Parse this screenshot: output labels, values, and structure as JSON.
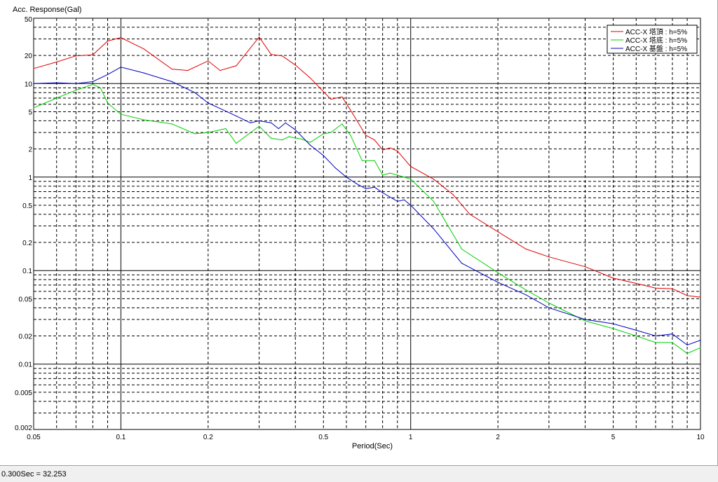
{
  "status_bar": {
    "text": "0.300Sec = 32.253"
  },
  "chart_data": {
    "type": "line",
    "title": "",
    "xlabel": "Period(Sec)",
    "ylabel": "Acc. Response(Gal)",
    "x_scale": "log",
    "y_scale": "log",
    "xlim": [
      0.05,
      10
    ],
    "ylim": [
      0.002,
      50
    ],
    "grid": true,
    "legend_position": "top-right",
    "x_ticks": [
      0.05,
      0.1,
      0.2,
      0.5,
      1,
      2,
      5,
      10
    ],
    "x_tick_labels": [
      "0.05",
      "0.1",
      "0.2",
      "0.5",
      "1",
      "2",
      "5",
      "10"
    ],
    "y_ticks": [
      0.002,
      0.005,
      0.01,
      0.02,
      0.05,
      0.1,
      0.2,
      0.5,
      1,
      2,
      5,
      10,
      20,
      50
    ],
    "y_tick_labels": [
      "0.002",
      "0.005",
      "0.01",
      "0.02",
      "0.05",
      "0.1",
      "0.2",
      "0.5",
      "1",
      "2",
      "5",
      "10",
      "20",
      "50"
    ],
    "series": [
      {
        "name": "ACC-X 塔頂 : h=5%",
        "color": "#e00000",
        "points": [
          [
            0.05,
            14.5
          ],
          [
            0.06,
            17.0
          ],
          [
            0.07,
            19.8
          ],
          [
            0.08,
            20.3
          ],
          [
            0.09,
            28.5
          ],
          [
            0.1,
            31.0
          ],
          [
            0.12,
            23.5
          ],
          [
            0.15,
            14.3
          ],
          [
            0.17,
            13.8
          ],
          [
            0.2,
            17.5
          ],
          [
            0.22,
            13.8
          ],
          [
            0.25,
            15.5
          ],
          [
            0.3,
            31.5
          ],
          [
            0.33,
            20.5
          ],
          [
            0.36,
            19.8
          ],
          [
            0.4,
            15.8
          ],
          [
            0.45,
            11.5
          ],
          [
            0.5,
            8.2
          ],
          [
            0.53,
            6.8
          ],
          [
            0.58,
            7.2
          ],
          [
            0.63,
            4.8
          ],
          [
            0.7,
            2.8
          ],
          [
            0.75,
            2.5
          ],
          [
            0.8,
            1.95
          ],
          [
            0.85,
            2.05
          ],
          [
            0.9,
            1.9
          ],
          [
            1.0,
            1.3
          ],
          [
            1.2,
            0.95
          ],
          [
            1.4,
            0.65
          ],
          [
            1.6,
            0.4
          ],
          [
            2.0,
            0.26
          ],
          [
            2.5,
            0.17
          ],
          [
            3.0,
            0.14
          ],
          [
            4.0,
            0.11
          ],
          [
            5.0,
            0.083
          ],
          [
            6.0,
            0.073
          ],
          [
            7.0,
            0.065
          ],
          [
            8.0,
            0.064
          ],
          [
            9.0,
            0.054
          ],
          [
            10.0,
            0.052
          ]
        ]
      },
      {
        "name": "ACC-X 塔底 : h=5%",
        "color": "#00d000",
        "points": [
          [
            0.05,
            5.5
          ],
          [
            0.06,
            7.0
          ],
          [
            0.07,
            8.5
          ],
          [
            0.08,
            9.8
          ],
          [
            0.085,
            9.0
          ],
          [
            0.09,
            6.2
          ],
          [
            0.1,
            4.7
          ],
          [
            0.12,
            4.1
          ],
          [
            0.15,
            3.7
          ],
          [
            0.18,
            2.9
          ],
          [
            0.2,
            3.0
          ],
          [
            0.23,
            3.3
          ],
          [
            0.25,
            2.3
          ],
          [
            0.3,
            3.5
          ],
          [
            0.33,
            2.6
          ],
          [
            0.36,
            2.5
          ],
          [
            0.38,
            2.7
          ],
          [
            0.42,
            2.55
          ],
          [
            0.45,
            2.35
          ],
          [
            0.5,
            2.9
          ],
          [
            0.53,
            3.0
          ],
          [
            0.58,
            3.7
          ],
          [
            0.62,
            2.8
          ],
          [
            0.68,
            1.5
          ],
          [
            0.75,
            1.5
          ],
          [
            0.8,
            1.05
          ],
          [
            0.85,
            1.1
          ],
          [
            0.9,
            1.05
          ],
          [
            1.0,
            0.95
          ],
          [
            1.2,
            0.55
          ],
          [
            1.5,
            0.17
          ],
          [
            2.0,
            0.095
          ],
          [
            2.5,
            0.062
          ],
          [
            3.0,
            0.045
          ],
          [
            4.0,
            0.029
          ],
          [
            5.0,
            0.024
          ],
          [
            6.0,
            0.02
          ],
          [
            7.0,
            0.017
          ],
          [
            8.0,
            0.017
          ],
          [
            9.0,
            0.013
          ],
          [
            10.0,
            0.015
          ]
        ]
      },
      {
        "name": "ACC-X 基盤 : h=5%",
        "color": "#0000c0",
        "points": [
          [
            0.05,
            10.0
          ],
          [
            0.06,
            10.2
          ],
          [
            0.07,
            10.0
          ],
          [
            0.08,
            10.5
          ],
          [
            0.09,
            12.5
          ],
          [
            0.1,
            15.0
          ],
          [
            0.12,
            13.0
          ],
          [
            0.15,
            10.5
          ],
          [
            0.18,
            8.0
          ],
          [
            0.2,
            6.2
          ],
          [
            0.25,
            4.5
          ],
          [
            0.28,
            3.8
          ],
          [
            0.3,
            4.0
          ],
          [
            0.33,
            3.8
          ],
          [
            0.35,
            3.3
          ],
          [
            0.37,
            3.8
          ],
          [
            0.4,
            3.2
          ],
          [
            0.45,
            2.2
          ],
          [
            0.5,
            1.7
          ],
          [
            0.55,
            1.25
          ],
          [
            0.6,
            1.0
          ],
          [
            0.65,
            0.85
          ],
          [
            0.7,
            0.75
          ],
          [
            0.75,
            0.78
          ],
          [
            0.8,
            0.68
          ],
          [
            0.9,
            0.55
          ],
          [
            0.95,
            0.57
          ],
          [
            1.0,
            0.5
          ],
          [
            1.2,
            0.28
          ],
          [
            1.5,
            0.12
          ],
          [
            2.0,
            0.075
          ],
          [
            2.5,
            0.055
          ],
          [
            3.0,
            0.04
          ],
          [
            4.0,
            0.03
          ],
          [
            5.0,
            0.027
          ],
          [
            6.0,
            0.023
          ],
          [
            7.0,
            0.02
          ],
          [
            8.0,
            0.021
          ],
          [
            9.0,
            0.016
          ],
          [
            10.0,
            0.018
          ]
        ]
      }
    ]
  }
}
